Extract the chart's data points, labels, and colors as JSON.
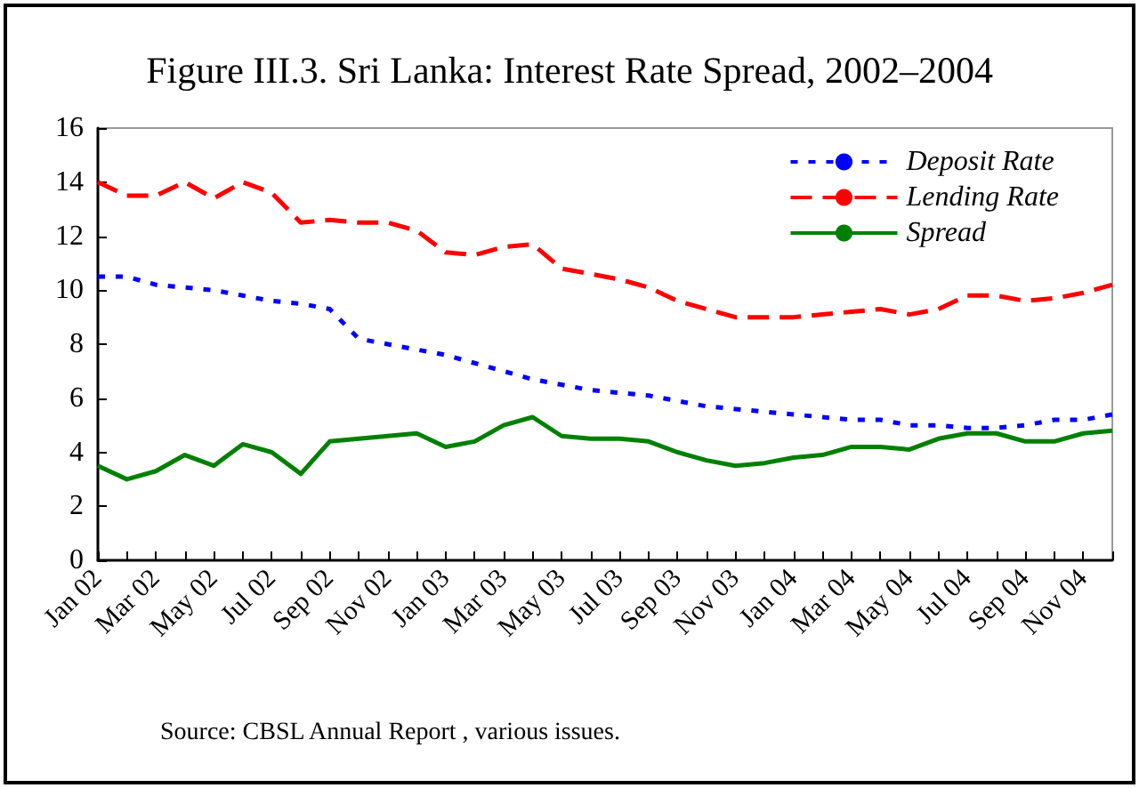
{
  "chart_data": {
    "type": "line",
    "title": "Figure III.3. Sri Lanka: Interest Rate Spread, 2002–2004",
    "categories": [
      "Jan 02",
      null,
      "Mar 02",
      null,
      "May 02",
      null,
      "Jul 02",
      null,
      "Sep 02",
      null,
      "Nov 02",
      null,
      "Jan 03",
      null,
      "Mar 03",
      null,
      "May 03",
      null,
      "Jul 03",
      null,
      "Sep 03",
      null,
      "Nov 03",
      null,
      "Jan 04",
      null,
      "Mar 04",
      null,
      "May 04",
      null,
      "Jul 04",
      null,
      "Sep 04",
      null,
      "Nov 04",
      null
    ],
    "series": [
      {
        "name": "Deposit Rate",
        "color": "#0000ff",
        "line_style": "dotted",
        "values": [
          10.5,
          10.5,
          10.2,
          10.1,
          10.0,
          9.8,
          9.6,
          9.5,
          9.3,
          8.2,
          8.0,
          7.8,
          7.6,
          7.3,
          7.0,
          6.7,
          6.5,
          6.3,
          6.2,
          6.1,
          5.9,
          5.7,
          5.6,
          5.5,
          5.4,
          5.3,
          5.2,
          5.2,
          5.0,
          5.0,
          4.9,
          4.9,
          5.0,
          5.2,
          5.2,
          5.4
        ]
      },
      {
        "name": "Lending Rate",
        "color": "#ff0000",
        "line_style": "dashed",
        "values": [
          14.0,
          13.5,
          13.5,
          14.0,
          13.4,
          14.0,
          13.6,
          12.5,
          12.6,
          12.5,
          12.5,
          12.2,
          11.4,
          11.3,
          11.6,
          11.7,
          10.8,
          10.6,
          10.4,
          10.1,
          9.6,
          9.3,
          9.0,
          9.0,
          9.0,
          9.1,
          9.2,
          9.3,
          9.1,
          9.3,
          9.8,
          9.8,
          9.6,
          9.7,
          9.9,
          10.2
        ]
      },
      {
        "name": "Spread",
        "color": "#008000",
        "line_style": "solid",
        "values": [
          3.5,
          3.0,
          3.3,
          3.9,
          3.5,
          4.3,
          4.0,
          3.2,
          4.4,
          4.5,
          4.6,
          4.7,
          4.2,
          4.4,
          5.0,
          5.3,
          4.6,
          4.5,
          4.5,
          4.4,
          4.0,
          3.7,
          3.5,
          3.6,
          3.8,
          3.9,
          4.2,
          4.2,
          4.1,
          4.5,
          4.7,
          4.7,
          4.4,
          4.4,
          4.7,
          4.8
        ]
      }
    ],
    "ylim": [
      0,
      16
    ],
    "yticks": [
      0,
      2,
      4,
      6,
      8,
      10,
      12,
      14,
      16
    ],
    "grid": false,
    "legend": "top right",
    "marker": "none",
    "annotations": [
      "Source: CBSL Annual Report , various issues."
    ]
  }
}
